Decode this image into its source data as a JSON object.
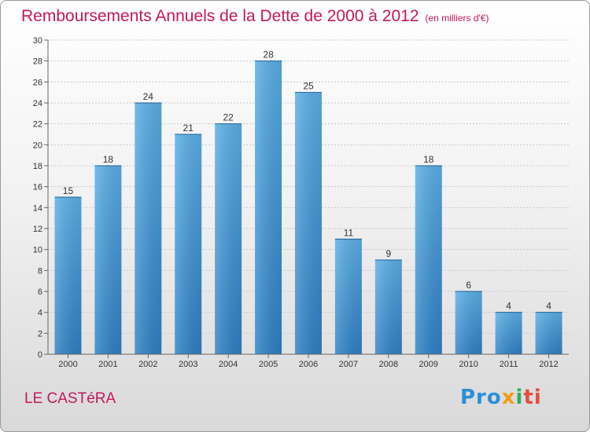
{
  "title": "Remboursements Annuels de la Dette de 2000 à 2012",
  "subtitle": "(en milliers d'€)",
  "commune": "LE CASTéRA",
  "logo": {
    "p1": "Pro",
    "p2": "x",
    "p3": "i",
    "p4": "ti"
  },
  "colors": {
    "bar": "#3d95d6",
    "bar_light": "#5cb0e8",
    "title": "#c2185b"
  },
  "chart_data": {
    "type": "bar",
    "title": "Remboursements Annuels de la Dette de 2000 à 2012",
    "subtitle": "(en milliers d'€)",
    "categories": [
      "2000",
      "2001",
      "2002",
      "2003",
      "2004",
      "2005",
      "2006",
      "2007",
      "2008",
      "2009",
      "2010",
      "2011",
      "2012"
    ],
    "values": [
      15,
      18,
      24,
      21,
      22,
      28,
      25,
      11,
      9,
      18,
      6,
      4,
      4
    ],
    "ylim": [
      0,
      30
    ],
    "yticks": [
      0,
      2,
      4,
      6,
      8,
      10,
      12,
      14,
      16,
      18,
      20,
      22,
      24,
      26,
      28,
      30
    ],
    "grid": true,
    "legend": "none"
  }
}
